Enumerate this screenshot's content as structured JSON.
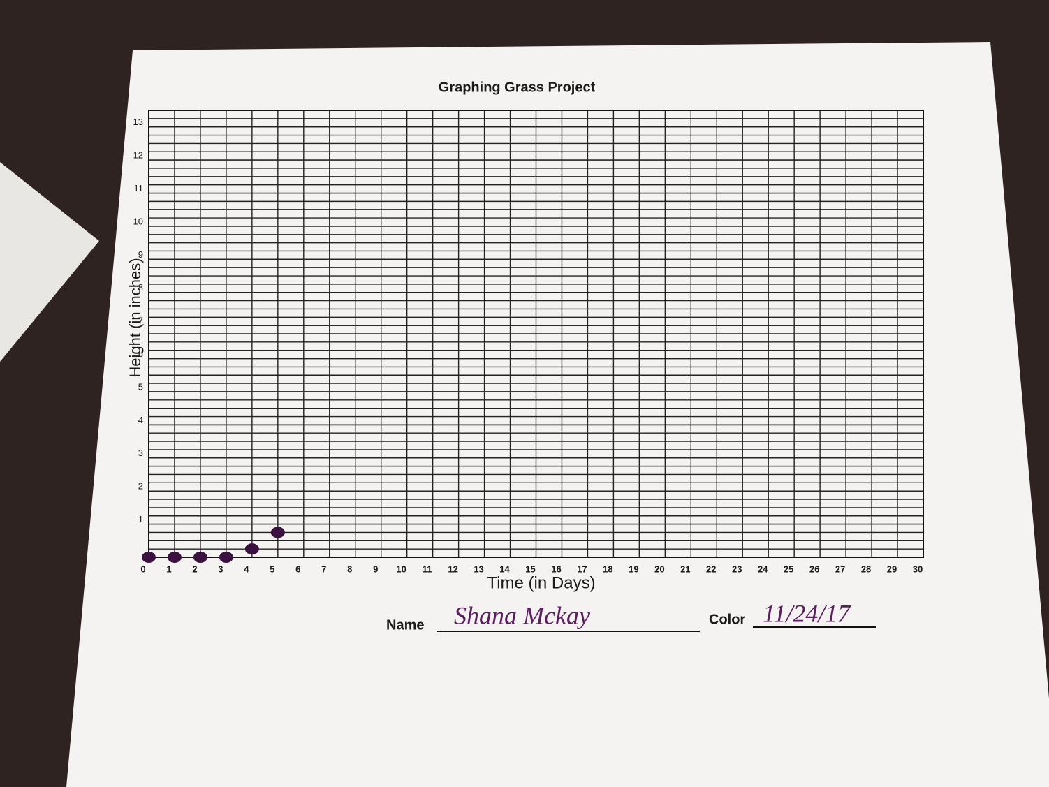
{
  "chart_data": {
    "type": "scatter",
    "title": "Graphing Grass Project",
    "x_label": "Time (in Days)",
    "y_label": "Height (in inches)",
    "x": [
      0,
      1,
      2,
      3,
      4,
      5
    ],
    "values": [
      0,
      0,
      0,
      0,
      0.25,
      0.75
    ],
    "color": "#3b1140",
    "xlim": [
      0,
      30
    ],
    "xticks": [
      0,
      1,
      2,
      3,
      4,
      5,
      6,
      7,
      8,
      9,
      10,
      11,
      12,
      13,
      14,
      15,
      16,
      17,
      18,
      19,
      20,
      21,
      22,
      23,
      24,
      25,
      26,
      27,
      28,
      29,
      30
    ],
    "ylim": [
      0,
      13.5
    ],
    "yticks": [
      1,
      2,
      3,
      4,
      5,
      6,
      7,
      8,
      9,
      10,
      11,
      12,
      13
    ],
    "y_minor_step": 0.25,
    "grid": true,
    "name_label": "Name",
    "name_value": "Shana Mckay",
    "color_label": "Color",
    "color_value": "11/24/17"
  }
}
